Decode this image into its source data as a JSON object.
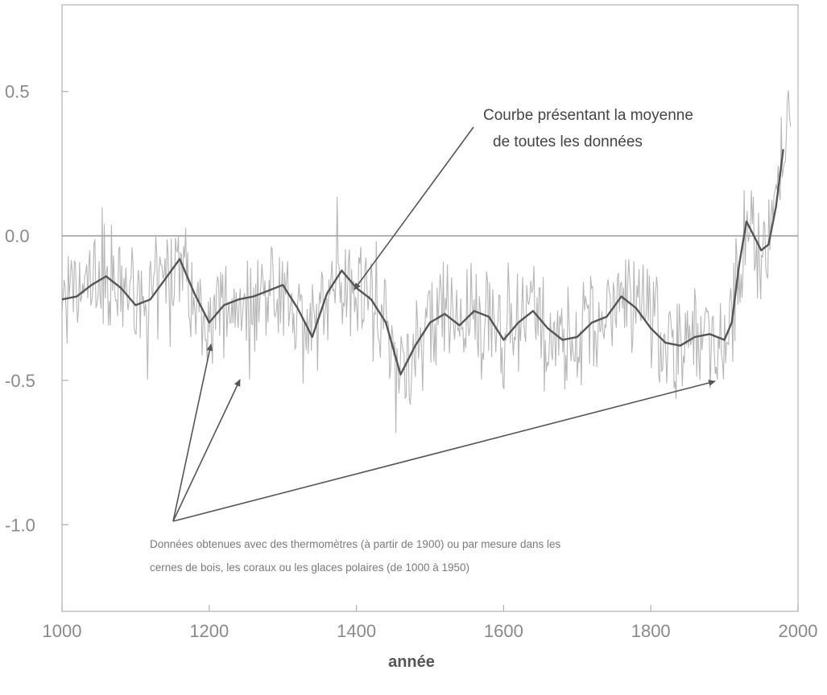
{
  "chart_data": {
    "type": "line",
    "title": "",
    "xlabel": "année",
    "ylabel": "",
    "xlim": [
      1000,
      2000
    ],
    "ylim": [
      -1.3,
      0.8
    ],
    "x_ticks": [
      1000,
      1200,
      1400,
      1600,
      1800,
      2000
    ],
    "x_tick_labels": [
      "1000",
      "1200",
      "1400",
      "1600",
      "1800",
      "2000"
    ],
    "y_ticks": [
      0.5,
      0.0,
      -0.5,
      -1.0
    ],
    "y_tick_labels": [
      "0.5",
      "0.0",
      "-0.5",
      "-1.0"
    ],
    "reference_line": {
      "y": 0.0
    },
    "series": [
      {
        "x": [
          1000,
          1020,
          1040,
          1060,
          1080,
          1100,
          1120,
          1140,
          1160,
          1180,
          1200,
          1220,
          1240,
          1260,
          1280,
          1300,
          1320,
          1340,
          1360,
          1380,
          1400,
          1420,
          1440,
          1460,
          1480,
          1500,
          1520,
          1540,
          1560,
          1580,
          1600,
          1620,
          1640,
          1660,
          1680,
          1700,
          1720,
          1740,
          1760,
          1780,
          1800,
          1820,
          1840,
          1860,
          1880,
          1900,
          1910,
          1920,
          1930,
          1940,
          1950,
          1960,
          1970,
          1980
        ],
        "values": [
          -0.22,
          -0.21,
          -0.17,
          -0.14,
          -0.18,
          -0.24,
          -0.22,
          -0.15,
          -0.08,
          -0.2,
          -0.3,
          -0.24,
          -0.22,
          -0.21,
          -0.19,
          -0.17,
          -0.25,
          -0.35,
          -0.2,
          -0.12,
          -0.18,
          -0.22,
          -0.3,
          -0.48,
          -0.38,
          -0.3,
          -0.27,
          -0.31,
          -0.26,
          -0.28,
          -0.36,
          -0.3,
          -0.26,
          -0.32,
          -0.36,
          -0.35,
          -0.3,
          -0.28,
          -0.21,
          -0.25,
          -0.32,
          -0.37,
          -0.38,
          -0.35,
          -0.34,
          -0.36,
          -0.3,
          -0.1,
          0.05,
          0.0,
          -0.05,
          -0.03,
          0.1,
          0.3
        ]
      }
    ],
    "annotations": [
      {
        "lines": [
          "Courbe présentant la moyenne",
          "de toutes les données"
        ]
      },
      {
        "lines": [
          "Données obtenues avec des thermomètres (à partir de 1900) ou par mesure dans les",
          "cernes de bois, les coraux ou les glaces polaires (de 1000 à 1950)"
        ]
      }
    ]
  }
}
